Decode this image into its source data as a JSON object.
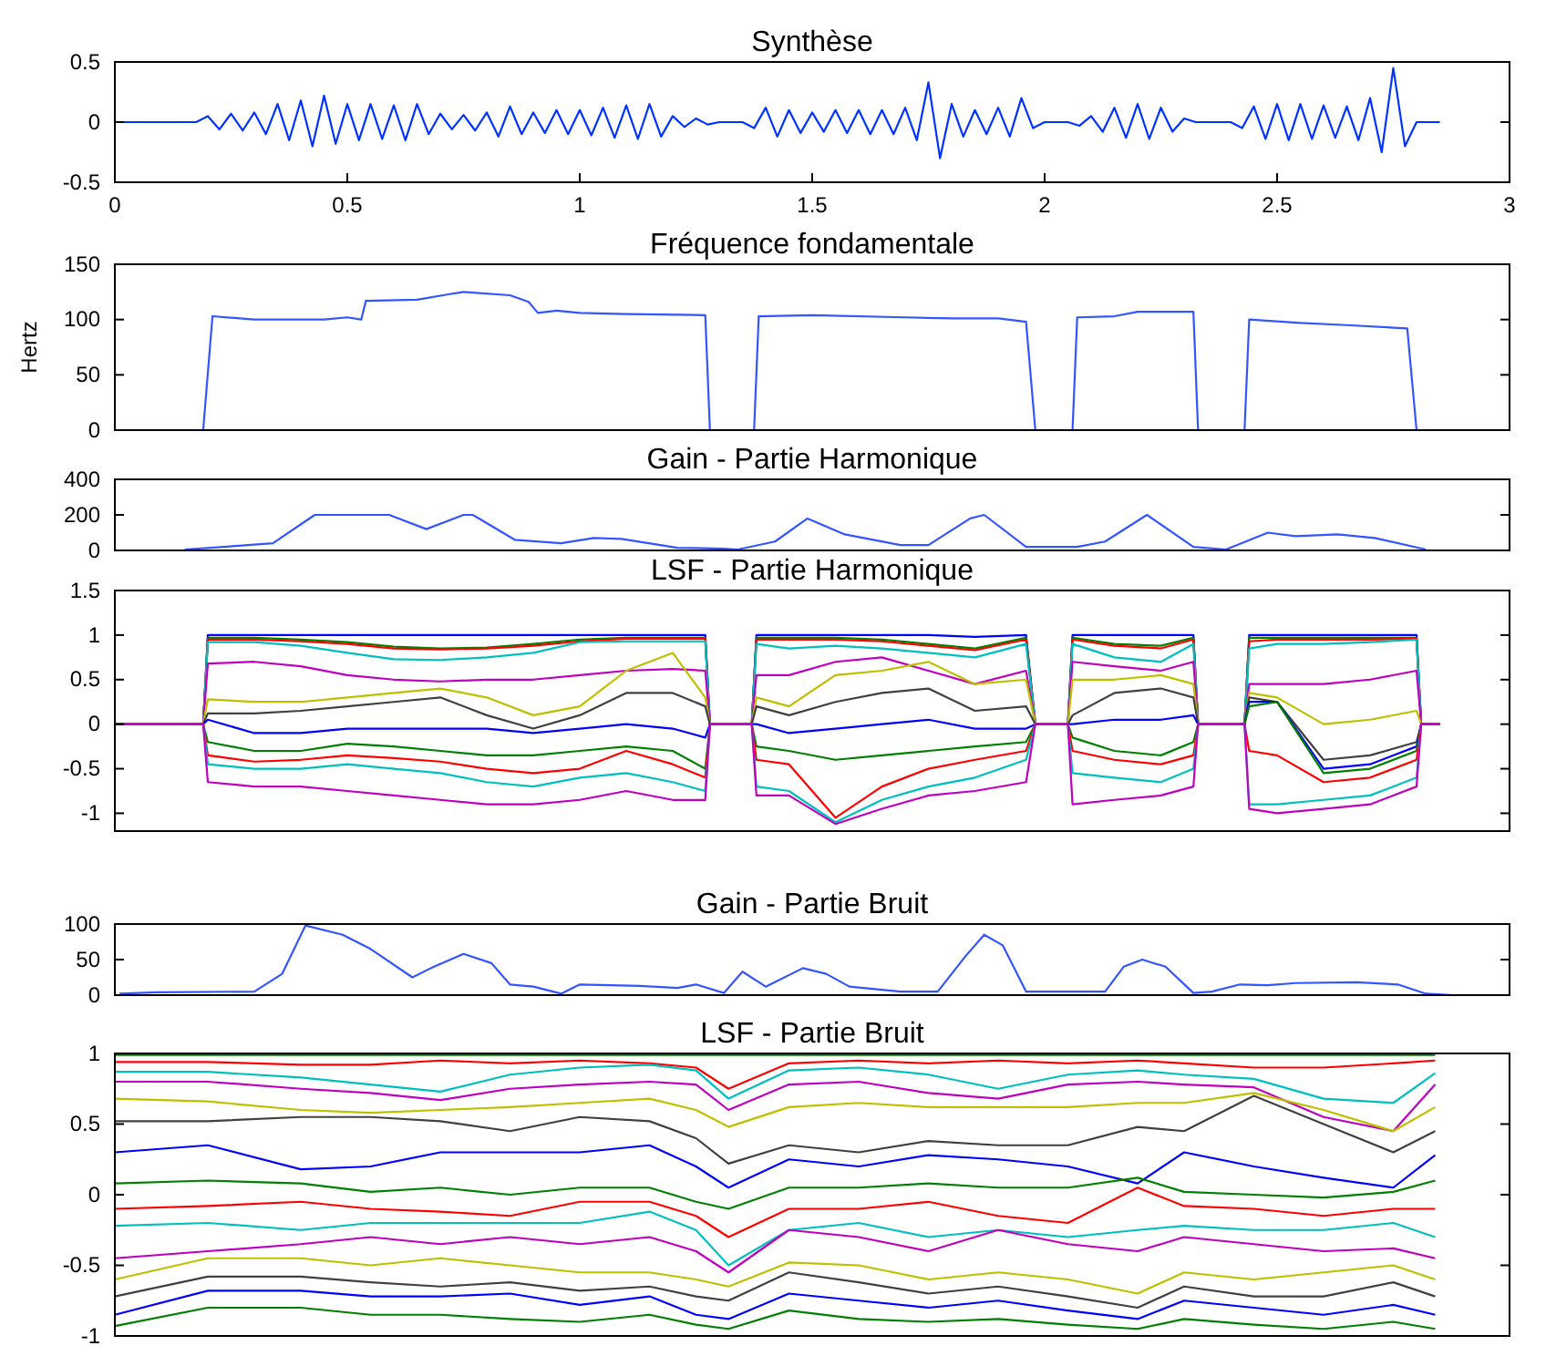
{
  "chart_data": [
    {
      "type": "line",
      "title": "Synthèse",
      "xlim": [
        0,
        3
      ],
      "xticks": [
        0,
        0.5,
        1,
        1.5,
        2,
        2.5,
        3
      ],
      "ylim": [
        -0.5,
        0.5
      ],
      "yticks": [
        -0.5,
        0,
        0.5
      ],
      "x": [
        0,
        0.025,
        0.05,
        0.075,
        0.1,
        0.125,
        0.15,
        0.175,
        0.2,
        0.225,
        0.25,
        0.275,
        0.3,
        0.325,
        0.35,
        0.375,
        0.4,
        0.425,
        0.45,
        0.475,
        0.5,
        0.525,
        0.55,
        0.575,
        0.6,
        0.625,
        0.65,
        0.675,
        0.7,
        0.725,
        0.75,
        0.775,
        0.8,
        0.825,
        0.85,
        0.875,
        0.9,
        0.925,
        0.95,
        0.975,
        1.0,
        1.025,
        1.05,
        1.075,
        1.1,
        1.125,
        1.15,
        1.175,
        1.2,
        1.225,
        1.25,
        1.275,
        1.3,
        1.325,
        1.35,
        1.375,
        1.4,
        1.425,
        1.45,
        1.475,
        1.5,
        1.525,
        1.55,
        1.575,
        1.6,
        1.625,
        1.65,
        1.675,
        1.7,
        1.725,
        1.75,
        1.775,
        1.8,
        1.825,
        1.85,
        1.875,
        1.9,
        1.925,
        1.95,
        1.975,
        2.0,
        2.025,
        2.05,
        2.075,
        2.1,
        2.125,
        2.15,
        2.175,
        2.2,
        2.225,
        2.25,
        2.275,
        2.3,
        2.325,
        2.35,
        2.375,
        2.4,
        2.425,
        2.45,
        2.475,
        2.5,
        2.525,
        2.55,
        2.575,
        2.6,
        2.625,
        2.65,
        2.675,
        2.7,
        2.725,
        2.75,
        2.775,
        2.8,
        2.825,
        2.85
      ],
      "series": [
        {
          "color": "#0033ff",
          "values": [
            0,
            0,
            0,
            0,
            0,
            0,
            0,
            0,
            0.05,
            -0.06,
            0.07,
            -0.07,
            0.08,
            -0.1,
            0.15,
            -0.15,
            0.18,
            -0.2,
            0.22,
            -0.18,
            0.15,
            -0.15,
            0.15,
            -0.14,
            0.14,
            -0.15,
            0.15,
            -0.1,
            0.07,
            -0.06,
            0.06,
            -0.07,
            0.08,
            -0.12,
            0.13,
            -0.1,
            0.08,
            -0.09,
            0.1,
            -0.1,
            0.1,
            -0.11,
            0.12,
            -0.13,
            0.14,
            -0.14,
            0.15,
            -0.12,
            0.05,
            -0.04,
            0.03,
            -0.02,
            0,
            0,
            0,
            -0.05,
            0.12,
            -0.12,
            0.1,
            -0.09,
            0.08,
            -0.08,
            0.1,
            -0.09,
            0.1,
            -0.1,
            0.1,
            -0.1,
            0.12,
            -0.15,
            0.33,
            -0.3,
            0.15,
            -0.12,
            0.1,
            -0.1,
            0.12,
            -0.12,
            0.2,
            -0.05,
            0,
            0,
            0,
            -0.03,
            0.05,
            -0.08,
            0.12,
            -0.13,
            0.15,
            -0.14,
            0.12,
            -0.08,
            0.03,
            0,
            0,
            0,
            0,
            -0.05,
            0.13,
            -0.14,
            0.15,
            -0.15,
            0.15,
            -0.14,
            0.14,
            -0.13,
            0.13,
            -0.15,
            0.2,
            -0.25,
            0.45,
            -0.2,
            0,
            0,
            0
          ]
        }
      ]
    },
    {
      "type": "line",
      "title": "Fréquence fondamentale",
      "ylabel": "Hertz",
      "xlim": [
        0,
        3
      ],
      "ylim": [
        0,
        150
      ],
      "yticks": [
        0,
        50,
        100,
        150
      ],
      "tick_labels": "y",
      "x": [
        0.19,
        0.21,
        0.3,
        0.45,
        0.5,
        0.53,
        0.54,
        0.65,
        0.72,
        0.75,
        0.85,
        0.89,
        0.91,
        0.95,
        1.0,
        1.1,
        1.27,
        1.28,
        1.375,
        1.385,
        1.5,
        1.7,
        1.8,
        1.9,
        1.96,
        1.98,
        2.06,
        2.07,
        2.15,
        2.2,
        2.32,
        2.33,
        2.43,
        2.44,
        2.55,
        2.65,
        2.78,
        2.8
      ],
      "series": [
        {
          "color": "#3355ff",
          "values": [
            0,
            103,
            100,
            100,
            102,
            100,
            117,
            118,
            123,
            125,
            122,
            116,
            106,
            108,
            106,
            105,
            104,
            0,
            0,
            103,
            104,
            102,
            101,
            101,
            98,
            0,
            0,
            102,
            103,
            107,
            107,
            0,
            0,
            100,
            97,
            95,
            92,
            0
          ]
        }
      ]
    },
    {
      "type": "line",
      "title": "Gain - Partie Harmonique",
      "xlim": [
        0,
        3
      ],
      "ylim": [
        0,
        400
      ],
      "yticks": [
        0,
        200,
        400
      ],
      "tick_labels": "y",
      "x": [
        0.15,
        0.26,
        0.34,
        0.43,
        0.59,
        0.67,
        0.75,
        0.77,
        0.86,
        0.96,
        1.03,
        1.09,
        1.21,
        1.31,
        1.34,
        1.42,
        1.49,
        1.57,
        1.69,
        1.75,
        1.84,
        1.87,
        1.96,
        2.07,
        2.13,
        2.22,
        2.32,
        2.39,
        2.48,
        2.54,
        2.63,
        2.71,
        2.82
      ],
      "series": [
        {
          "color": "#3355ff",
          "values": [
            5,
            25,
            40,
            200,
            200,
            120,
            200,
            200,
            60,
            40,
            70,
            65,
            15,
            10,
            5,
            50,
            180,
            90,
            30,
            30,
            180,
            200,
            20,
            20,
            50,
            200,
            20,
            5,
            100,
            80,
            90,
            70,
            5
          ]
        }
      ]
    },
    {
      "type": "line",
      "title": "LSF - Partie Harmonique",
      "xlim": [
        0,
        3
      ],
      "ylim": [
        -1.2,
        1.5
      ],
      "yticks": [
        -1,
        -0.5,
        0,
        0.5,
        1,
        1.5
      ],
      "tick_labels": "y",
      "x": [
        0,
        0.19,
        0.2,
        0.3,
        0.4,
        0.5,
        0.6,
        0.7,
        0.8,
        0.9,
        1.0,
        1.1,
        1.2,
        1.27,
        1.28,
        1.37,
        1.38,
        1.45,
        1.55,
        1.65,
        1.75,
        1.85,
        1.96,
        1.98,
        2.05,
        2.06,
        2.15,
        2.25,
        2.32,
        2.33,
        2.43,
        2.44,
        2.5,
        2.6,
        2.7,
        2.8,
        2.81,
        2.85
      ],
      "series": [
        {
          "color": "#0000ff",
          "values": [
            0,
            0,
            1,
            1,
            1,
            1,
            1,
            1,
            1,
            1,
            1,
            1,
            1,
            1,
            0,
            0,
            1,
            1,
            1,
            1,
            1,
            0.98,
            1,
            0,
            0,
            1,
            1,
            1,
            1,
            0,
            0,
            1,
            1,
            1,
            1,
            1,
            0,
            0
          ]
        },
        {
          "color": "#008000",
          "values": [
            0,
            0,
            0.97,
            0.97,
            0.95,
            0.92,
            0.87,
            0.85,
            0.86,
            0.9,
            0.95,
            0.97,
            0.97,
            0.97,
            0,
            0,
            0.97,
            0.97,
            0.97,
            0.95,
            0.9,
            0.85,
            0.97,
            0,
            0,
            0.97,
            0.9,
            0.88,
            0.97,
            0,
            0,
            0.97,
            0.97,
            0.97,
            0.97,
            0.97,
            0,
            0
          ]
        },
        {
          "color": "#ff0000",
          "values": [
            0,
            0,
            0.95,
            0.95,
            0.93,
            0.9,
            0.85,
            0.84,
            0.85,
            0.88,
            0.93,
            0.96,
            0.96,
            0.96,
            0,
            0,
            0.95,
            0.95,
            0.95,
            0.93,
            0.88,
            0.83,
            0.95,
            0,
            0,
            0.95,
            0.88,
            0.85,
            0.95,
            0,
            0,
            0.93,
            0.95,
            0.95,
            0.95,
            0.96,
            0,
            0
          ]
        },
        {
          "color": "#00bfbf",
          "values": [
            0,
            0,
            0.92,
            0.92,
            0.88,
            0.8,
            0.73,
            0.72,
            0.75,
            0.8,
            0.92,
            0.93,
            0.93,
            0.93,
            0,
            0,
            0.9,
            0.85,
            0.88,
            0.85,
            0.8,
            0.75,
            0.9,
            0,
            0,
            0.9,
            0.75,
            0.7,
            0.9,
            0,
            0,
            0.85,
            0.9,
            0.9,
            0.92,
            0.95,
            0,
            0
          ]
        },
        {
          "color": "#bf00bf",
          "values": [
            0,
            0,
            0.68,
            0.7,
            0.65,
            0.55,
            0.5,
            0.48,
            0.5,
            0.5,
            0.55,
            0.6,
            0.62,
            0.6,
            0,
            0,
            0.55,
            0.55,
            0.7,
            0.75,
            0.6,
            0.45,
            0.6,
            0,
            0,
            0.7,
            0.65,
            0.6,
            0.7,
            0,
            0,
            0.45,
            0.45,
            0.45,
            0.5,
            0.6,
            0,
            0
          ]
        },
        {
          "color": "#bfbf00",
          "values": [
            0,
            0,
            0.28,
            0.25,
            0.25,
            0.3,
            0.35,
            0.4,
            0.3,
            0.1,
            0.2,
            0.6,
            0.8,
            0.3,
            0,
            0,
            0.3,
            0.2,
            0.55,
            0.6,
            0.7,
            0.45,
            0.5,
            0,
            0,
            0.5,
            0.5,
            0.55,
            0.45,
            0,
            0,
            0.35,
            0.3,
            0,
            0.05,
            0.15,
            0,
            0
          ]
        },
        {
          "color": "#404040",
          "values": [
            0,
            0,
            0.12,
            0.12,
            0.15,
            0.2,
            0.25,
            0.3,
            0.1,
            -0.05,
            0.1,
            0.35,
            0.35,
            0.2,
            0,
            0,
            0.2,
            0.1,
            0.25,
            0.35,
            0.4,
            0.15,
            0.2,
            0,
            0,
            0.1,
            0.35,
            0.4,
            0.3,
            0,
            0,
            0.3,
            0.25,
            -0.4,
            -0.35,
            -0.2,
            0,
            0
          ]
        },
        {
          "color": "#0000ff",
          "values": [
            0,
            0,
            0.05,
            -0.1,
            -0.1,
            -0.05,
            -0.05,
            -0.05,
            -0.05,
            -0.1,
            -0.05,
            0,
            -0.05,
            -0.15,
            0,
            0,
            0,
            -0.1,
            -0.05,
            0,
            0.05,
            -0.05,
            -0.05,
            0,
            0,
            0,
            0.05,
            0.05,
            0.1,
            0,
            0,
            0.25,
            0.25,
            -0.5,
            -0.45,
            -0.25,
            0,
            0
          ]
        },
        {
          "color": "#008000",
          "values": [
            0,
            0,
            -0.2,
            -0.3,
            -0.3,
            -0.22,
            -0.25,
            -0.3,
            -0.35,
            -0.35,
            -0.3,
            -0.25,
            -0.3,
            -0.5,
            0,
            0,
            -0.25,
            -0.3,
            -0.4,
            -0.35,
            -0.3,
            -0.25,
            -0.2,
            0,
            0,
            -0.15,
            -0.3,
            -0.35,
            -0.2,
            0,
            0,
            0.2,
            0.25,
            -0.55,
            -0.5,
            -0.3,
            0,
            0
          ]
        },
        {
          "color": "#ff0000",
          "values": [
            0,
            0,
            -0.35,
            -0.42,
            -0.4,
            -0.35,
            -0.38,
            -0.42,
            -0.5,
            -0.55,
            -0.5,
            -0.3,
            -0.45,
            -0.6,
            0,
            0,
            -0.4,
            -0.45,
            -1.05,
            -0.7,
            -0.5,
            -0.4,
            -0.3,
            0,
            0,
            -0.3,
            -0.4,
            -0.45,
            -0.35,
            0,
            0,
            -0.3,
            -0.35,
            -0.65,
            -0.6,
            -0.4,
            0,
            0
          ]
        },
        {
          "color": "#00bfbf",
          "values": [
            0,
            0,
            -0.45,
            -0.5,
            -0.5,
            -0.45,
            -0.5,
            -0.55,
            -0.65,
            -0.7,
            -0.6,
            -0.55,
            -0.65,
            -0.75,
            0,
            0,
            -0.7,
            -0.75,
            -1.1,
            -0.85,
            -0.7,
            -0.6,
            -0.4,
            0,
            0,
            -0.55,
            -0.6,
            -0.65,
            -0.5,
            0,
            0,
            -0.9,
            -0.9,
            -0.85,
            -0.8,
            -0.6,
            0,
            0
          ]
        },
        {
          "color": "#bf00bf",
          "values": [
            0,
            0,
            -0.65,
            -0.7,
            -0.7,
            -0.75,
            -0.8,
            -0.85,
            -0.9,
            -0.9,
            -0.85,
            -0.75,
            -0.85,
            -0.85,
            0,
            0,
            -0.8,
            -0.8,
            -1.12,
            -0.95,
            -0.8,
            -0.75,
            -0.65,
            0,
            0,
            -0.9,
            -0.85,
            -0.8,
            -0.7,
            0,
            0,
            -0.95,
            -1.0,
            -0.95,
            -0.9,
            -0.7,
            0,
            0
          ]
        }
      ]
    },
    {
      "type": "line",
      "title": "Gain - Partie Bruit",
      "xlim": [
        0,
        3
      ],
      "ylim": [
        0,
        100
      ],
      "yticks": [
        0,
        50,
        100
      ],
      "tick_labels": "y",
      "x": [
        0.01,
        0.09,
        0.3,
        0.36,
        0.41,
        0.49,
        0.55,
        0.64,
        0.68,
        0.75,
        0.81,
        0.85,
        0.9,
        0.96,
        1.0,
        1.13,
        1.21,
        1.25,
        1.31,
        1.35,
        1.4,
        1.48,
        1.53,
        1.58,
        1.69,
        1.77,
        1.83,
        1.87,
        1.91,
        1.96,
        2.13,
        2.17,
        2.21,
        2.26,
        2.32,
        2.36,
        2.42,
        2.48,
        2.54,
        2.67,
        2.76,
        2.82,
        2.88
      ],
      "series": [
        {
          "color": "#3355ff",
          "values": [
            2,
            4,
            5,
            30,
            98,
            85,
            65,
            25,
            38,
            58,
            45,
            15,
            12,
            2,
            15,
            13,
            10,
            15,
            3,
            33,
            12,
            38,
            30,
            12,
            5,
            5,
            55,
            85,
            70,
            5,
            5,
            40,
            50,
            40,
            3,
            5,
            15,
            14,
            17,
            18,
            15,
            2,
            0
          ]
        }
      ]
    },
    {
      "type": "line",
      "title": "LSF - Partie Bruit",
      "xlim": [
        0,
        3
      ],
      "ylim": [
        -1,
        1
      ],
      "yticks": [
        -1,
        -0.5,
        0,
        0.5,
        1
      ],
      "tick_labels": "y",
      "x": [
        0,
        0.2,
        0.4,
        0.55,
        0.7,
        0.85,
        1.0,
        1.15,
        1.25,
        1.32,
        1.45,
        1.6,
        1.75,
        1.9,
        2.05,
        2.2,
        2.3,
        2.45,
        2.6,
        2.75,
        2.84
      ],
      "series": [
        {
          "color": "#008000",
          "values": [
            0.99,
            0.99,
            0.99,
            0.99,
            0.99,
            0.99,
            0.99,
            0.99,
            0.99,
            0.99,
            0.99,
            0.99,
            0.99,
            0.99,
            0.99,
            0.99,
            0.99,
            0.99,
            0.99,
            0.99,
            0.99
          ]
        },
        {
          "color": "#ff0000",
          "values": [
            0.94,
            0.94,
            0.92,
            0.92,
            0.95,
            0.93,
            0.95,
            0.93,
            0.9,
            0.75,
            0.93,
            0.95,
            0.93,
            0.95,
            0.93,
            0.95,
            0.93,
            0.9,
            0.9,
            0.93,
            0.95
          ]
        },
        {
          "color": "#00bfbf",
          "values": [
            0.87,
            0.87,
            0.83,
            0.78,
            0.73,
            0.85,
            0.9,
            0.92,
            0.88,
            0.68,
            0.88,
            0.9,
            0.85,
            0.75,
            0.85,
            0.88,
            0.85,
            0.82,
            0.68,
            0.65,
            0.86
          ]
        },
        {
          "color": "#bf00bf",
          "values": [
            0.8,
            0.8,
            0.75,
            0.72,
            0.67,
            0.75,
            0.78,
            0.8,
            0.78,
            0.6,
            0.78,
            0.8,
            0.72,
            0.68,
            0.78,
            0.8,
            0.78,
            0.76,
            0.55,
            0.45,
            0.78
          ]
        },
        {
          "color": "#bfbf00",
          "values": [
            0.68,
            0.66,
            0.6,
            0.58,
            0.6,
            0.62,
            0.65,
            0.68,
            0.6,
            0.48,
            0.62,
            0.65,
            0.62,
            0.62,
            0.62,
            0.65,
            0.65,
            0.72,
            0.6,
            0.45,
            0.62
          ]
        },
        {
          "color": "#404040",
          "values": [
            0.52,
            0.52,
            0.55,
            0.55,
            0.52,
            0.45,
            0.55,
            0.52,
            0.4,
            0.22,
            0.35,
            0.3,
            0.38,
            0.35,
            0.35,
            0.48,
            0.45,
            0.7,
            0.5,
            0.3,
            0.45
          ]
        },
        {
          "color": "#0000ff",
          "values": [
            0.3,
            0.35,
            0.18,
            0.2,
            0.3,
            0.3,
            0.3,
            0.35,
            0.2,
            0.05,
            0.25,
            0.2,
            0.28,
            0.25,
            0.2,
            0.08,
            0.3,
            0.2,
            0.12,
            0.05,
            0.28
          ]
        },
        {
          "color": "#008000",
          "values": [
            0.08,
            0.1,
            0.08,
            0.02,
            0.05,
            0,
            0.05,
            0.05,
            -0.05,
            -0.1,
            0.05,
            0.05,
            0.08,
            0.05,
            0.05,
            0.12,
            0.02,
            0,
            -0.02,
            0.02,
            0.1
          ]
        },
        {
          "color": "#ff0000",
          "values": [
            -0.1,
            -0.08,
            -0.05,
            -0.1,
            -0.12,
            -0.15,
            -0.05,
            -0.05,
            -0.15,
            -0.3,
            -0.1,
            -0.1,
            -0.05,
            -0.15,
            -0.2,
            0.05,
            -0.08,
            -0.1,
            -0.15,
            -0.1,
            -0.1
          ]
        },
        {
          "color": "#00bfbf",
          "values": [
            -0.22,
            -0.2,
            -0.25,
            -0.2,
            -0.2,
            -0.2,
            -0.2,
            -0.12,
            -0.25,
            -0.5,
            -0.25,
            -0.2,
            -0.3,
            -0.25,
            -0.3,
            -0.25,
            -0.22,
            -0.25,
            -0.25,
            -0.2,
            -0.3
          ]
        },
        {
          "color": "#bf00bf",
          "values": [
            -0.45,
            -0.4,
            -0.35,
            -0.3,
            -0.35,
            -0.3,
            -0.35,
            -0.3,
            -0.4,
            -0.55,
            -0.25,
            -0.3,
            -0.4,
            -0.25,
            -0.35,
            -0.4,
            -0.3,
            -0.35,
            -0.4,
            -0.38,
            -0.45
          ]
        },
        {
          "color": "#bfbf00",
          "values": [
            -0.6,
            -0.45,
            -0.45,
            -0.5,
            -0.45,
            -0.5,
            -0.55,
            -0.55,
            -0.6,
            -0.65,
            -0.48,
            -0.5,
            -0.6,
            -0.55,
            -0.6,
            -0.7,
            -0.55,
            -0.6,
            -0.55,
            -0.5,
            -0.6
          ]
        },
        {
          "color": "#404040",
          "values": [
            -0.72,
            -0.58,
            -0.58,
            -0.62,
            -0.65,
            -0.62,
            -0.68,
            -0.65,
            -0.72,
            -0.75,
            -0.55,
            -0.62,
            -0.7,
            -0.65,
            -0.72,
            -0.8,
            -0.65,
            -0.72,
            -0.72,
            -0.62,
            -0.72
          ]
        },
        {
          "color": "#0000ff",
          "values": [
            -0.85,
            -0.68,
            -0.68,
            -0.72,
            -0.72,
            -0.7,
            -0.78,
            -0.72,
            -0.85,
            -0.88,
            -0.7,
            -0.75,
            -0.8,
            -0.75,
            -0.82,
            -0.88,
            -0.75,
            -0.8,
            -0.85,
            -0.78,
            -0.85
          ]
        },
        {
          "color": "#008000",
          "values": [
            -0.93,
            -0.8,
            -0.8,
            -0.85,
            -0.85,
            -0.88,
            -0.9,
            -0.85,
            -0.92,
            -0.95,
            -0.82,
            -0.88,
            -0.9,
            -0.88,
            -0.92,
            -0.95,
            -0.88,
            -0.92,
            -0.95,
            -0.9,
            -0.95
          ]
        }
      ]
    }
  ]
}
